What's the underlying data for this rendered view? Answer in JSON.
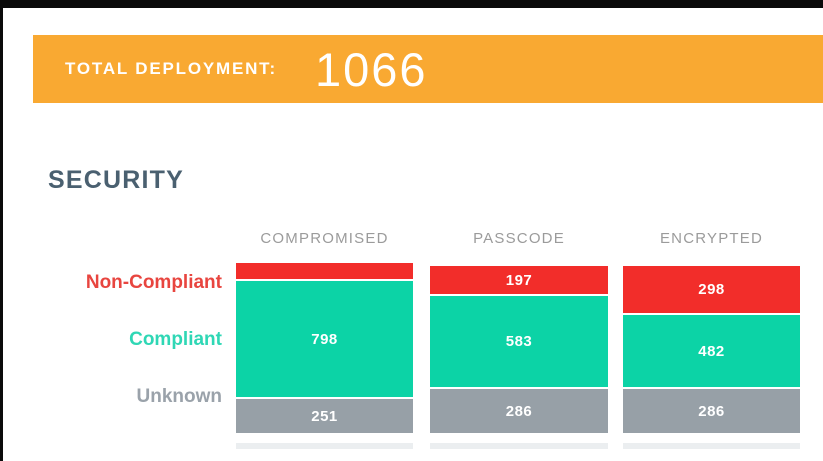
{
  "window": {
    "edge_color": "#0a0a0a",
    "background": "#ffffff"
  },
  "banner": {
    "label": "TOTAL DEPLOYMENT:",
    "value": "1066",
    "background": "#f9a932",
    "text_color": "#ffffff"
  },
  "section": {
    "title": "SECURITY",
    "title_color": "#4a6070"
  },
  "chart_data": {
    "type": "bar",
    "stacked": true,
    "orientation": "vertical",
    "title": "SECURITY",
    "categories": [
      "COMPROMISED",
      "PASSCODE",
      "ENCRYPTED"
    ],
    "category_header_color": "#9b9b9b",
    "series": [
      {
        "name": "Non-Compliant",
        "color": "#f22d2a",
        "label_color": "#e8453f",
        "values": [
          null,
          197,
          298
        ],
        "value_labels": [
          "",
          "197",
          "298"
        ]
      },
      {
        "name": "Compliant",
        "color": "#0cd3a6",
        "label_color": "#2fd7b5",
        "values": [
          798,
          583,
          482
        ],
        "value_labels": [
          "798",
          "583",
          "482"
        ]
      },
      {
        "name": "Unknown",
        "color": "#97a0a7",
        "label_color": "#9aa2aa",
        "values": [
          251,
          286,
          286
        ],
        "value_labels": [
          "251",
          "286",
          "286"
        ]
      }
    ],
    "column_total": 1066,
    "value_label_color": "#ffffff",
    "legend_position": "left",
    "grid": false,
    "axes_visible": false
  }
}
